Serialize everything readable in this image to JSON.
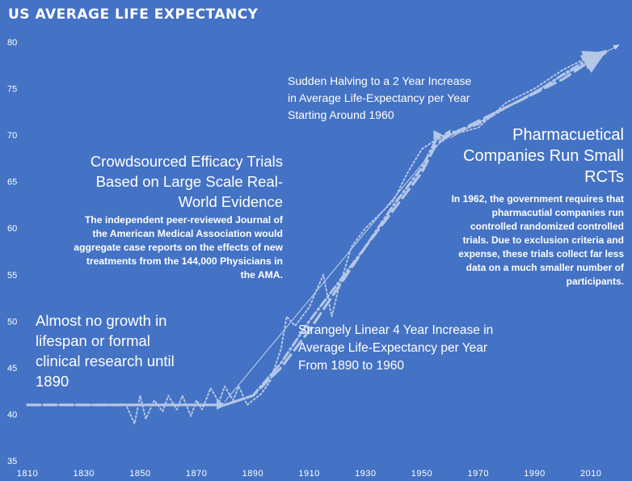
{
  "title": "US AVERAGE LIFE EXPECTANCY",
  "chart_data": {
    "type": "line",
    "title": "US AVERAGE LIFE EXPECTANCY",
    "xlabel": "",
    "ylabel": "",
    "xlim": [
      1810,
      2020
    ],
    "ylim": [
      35,
      80
    ],
    "x_ticks": [
      1810,
      1830,
      1850,
      1870,
      1890,
      1910,
      1930,
      1950,
      1970,
      1990,
      2010
    ],
    "y_ticks": [
      35,
      40,
      45,
      50,
      55,
      60,
      65,
      70,
      75,
      80
    ],
    "grid": false,
    "legend": "none",
    "series": [
      {
        "style": "dotted",
        "x": [
          1810,
          1820,
          1830,
          1840,
          1845,
          1848,
          1850,
          1852,
          1855,
          1858,
          1860,
          1863,
          1865,
          1868,
          1870,
          1872,
          1875,
          1878,
          1880,
          1883,
          1885,
          1888,
          1890,
          1893,
          1896,
          1900,
          1902,
          1905,
          1910,
          1915,
          1918,
          1920,
          1925,
          1930,
          1935,
          1940,
          1945,
          1950,
          1955,
          1960,
          1970,
          1980,
          1990,
          2000,
          2010,
          2015
        ],
        "y": [
          41,
          41,
          41,
          41,
          41,
          39,
          42,
          39.5,
          41.5,
          40.3,
          42,
          40.5,
          42,
          39.8,
          41.5,
          40.5,
          42.8,
          41.3,
          43,
          41.5,
          43,
          41,
          41.5,
          42.2,
          43.5,
          47,
          50.5,
          49.5,
          51.5,
          55,
          50.5,
          53,
          58,
          60,
          61.5,
          63,
          66,
          68.5,
          69.5,
          70,
          70.8,
          73.5,
          75,
          77,
          78.5,
          79
        ]
      },
      {
        "style": "dashed",
        "x": [
          1810,
          1820,
          1830,
          1840,
          1850,
          1860,
          1870,
          1880,
          1890,
          1900,
          1910,
          1920,
          1930,
          1940,
          1950,
          1955,
          1960,
          1970,
          1980,
          1990,
          2000,
          2010,
          2015
        ],
        "y": [
          41,
          41,
          41,
          41,
          41,
          41,
          41,
          41,
          42,
          45,
          49,
          53.5,
          58,
          62,
          66,
          69,
          70,
          71.5,
          73,
          74.5,
          76,
          78,
          79
        ]
      },
      {
        "style": "dash-dot",
        "x": [
          1810,
          1820,
          1830,
          1840,
          1850,
          1860,
          1870,
          1880,
          1890,
          1900,
          1910,
          1920,
          1930,
          1940,
          1950,
          1955,
          1960,
          1970,
          1980,
          1990,
          2000,
          2010,
          2015
        ],
        "y": [
          41,
          41,
          41,
          41,
          41,
          41,
          41,
          41,
          42,
          45.5,
          50,
          54,
          58,
          62.5,
          66.5,
          69.5,
          70.2,
          71.2,
          73,
          74.5,
          76.5,
          78.3,
          78.8
        ]
      }
    ],
    "trend_arrows": [
      {
        "x": [
          1820,
          1880
        ],
        "y": [
          41,
          41
        ]
      },
      {
        "x": [
          1880,
          1960
        ],
        "y": [
          41,
          70
        ]
      },
      {
        "x": [
          1960,
          2020
        ],
        "y": [
          69,
          79
        ]
      }
    ],
    "annotations": {
      "early": "Almost no growth in lifespan or formal clinical research until 1890",
      "crowd_heading": "Crowdsourced Efficacy Trials Based on Large Scale Real-World Evidence",
      "crowd_body": "The independent peer-reviewed Journal of the American Medical Association would aggregate case reports on the effects of new treatments from the 144,000 Physicians in the AMA.",
      "halving": "Sudden Halving to a 2 Year Increase in Average Life-Expectancy per Year Starting Around 1960",
      "linear": "Strangely Linear 4 Year Increase in Average Life-Expectancy per Year From 1890 to 1960",
      "pharma_heading": "Pharmacuetical Companies Run Small RCTs",
      "pharma_body": "In 1962, the government requires that pharmacutial companies run controlled randomized controlled trials. Due to exclusion criteria and expense, these trials collect far less data on a much smaller number of participants."
    }
  },
  "colors": {
    "background": "#4472c4",
    "text": "#ffffff",
    "line": "#b4c7e7",
    "tick_label": "#ffffff"
  }
}
